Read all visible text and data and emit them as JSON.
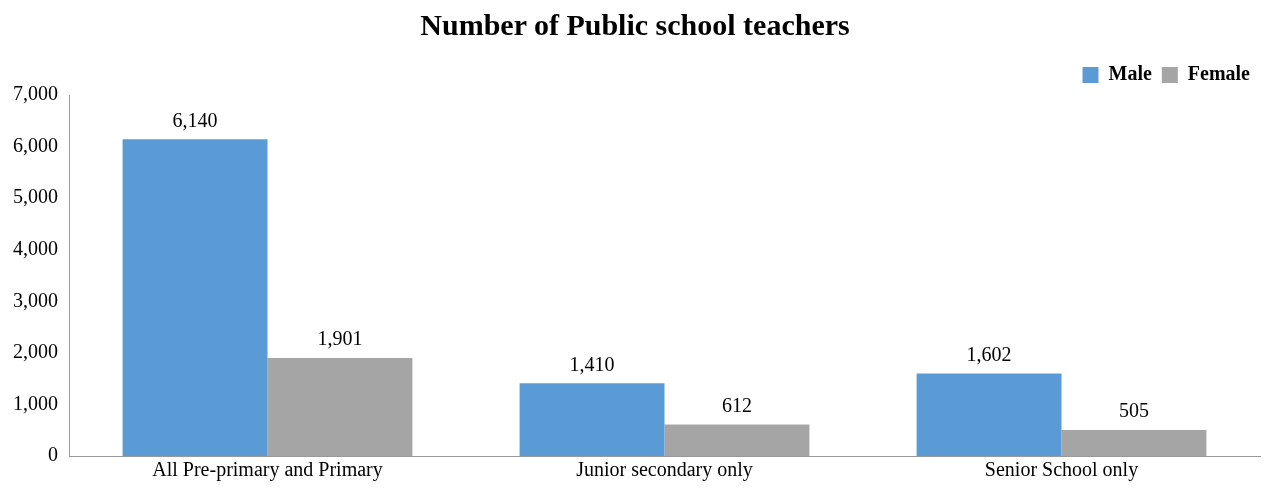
{
  "chart_data": {
    "type": "bar",
    "title": "Number of Public school teachers",
    "categories": [
      "All Pre-primary and Primary",
      "Junior secondary only",
      "Senior School only"
    ],
    "series": [
      {
        "name": "Male",
        "color": "#5b9bd5",
        "values": [
          6140,
          1410,
          1602
        ],
        "value_labels": [
          "6,140",
          "1,410",
          "1,602"
        ]
      },
      {
        "name": "Female",
        "color": "#a5a5a5",
        "values": [
          1901,
          612,
          505
        ],
        "value_labels": [
          "1,901",
          "612",
          "505"
        ]
      }
    ],
    "ylim": [
      0,
      7000
    ],
    "yticks": [
      0,
      {
        "value": 1000,
        "label": "1,000"
      },
      {
        "value": 2000,
        "label": "2,000"
      },
      {
        "value": 3000,
        "label": "3,000"
      },
      {
        "value": 4000,
        "label": "4,000"
      },
      {
        "value": 5000,
        "label": "5,000"
      },
      {
        "value": 6000,
        "label": "6,000"
      },
      {
        "value": 7000,
        "label": "7,000"
      }
    ],
    "grid": false,
    "legend": "top right"
  }
}
